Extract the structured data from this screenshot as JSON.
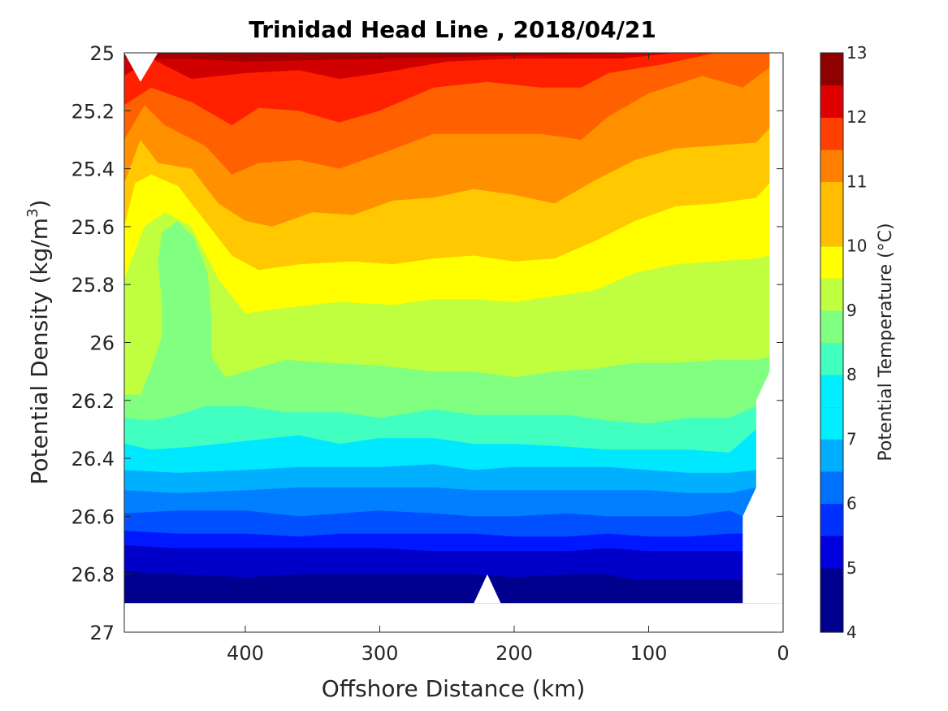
{
  "chart_data": {
    "type": "heatmap",
    "subtype": "filled-contour",
    "title": "Trinidad Head Line , 2018/04/21",
    "xlabel": "Offshore Distance (km)",
    "ylabel": "Potential Density (kg/m",
    "ylabel_superscript": "3",
    "ylabel_suffix": ")",
    "xlim": [
      490,
      0
    ],
    "x_reversed": true,
    "ylim": [
      25,
      27
    ],
    "y_reversed": true,
    "x_ticks": [
      400,
      300,
      200,
      100,
      0
    ],
    "x_tick_labels": [
      "400",
      "300",
      "200",
      "100",
      "0"
    ],
    "y_ticks": [
      25,
      25.2,
      25.4,
      25.6,
      25.8,
      26,
      26.2,
      26.4,
      26.6,
      26.8,
      27
    ],
    "y_tick_labels": [
      "25",
      "25.2",
      "25.4",
      "25.6",
      "25.8",
      "26",
      "26.2",
      "26.4",
      "26.6",
      "26.8",
      "27"
    ],
    "colorbar": {
      "label": "Potential Temperature (°C)",
      "range": [
        4,
        13
      ],
      "ticks": [
        4,
        5,
        6,
        7,
        8,
        9,
        10,
        11,
        12,
        13
      ],
      "tick_labels": [
        "4",
        "5",
        "6",
        "7",
        "8",
        "9",
        "10",
        "11",
        "12",
        "13"
      ],
      "level_step": 0.5,
      "colors": [
        "#00008f",
        "#0000df",
        "#0030ff",
        "#0070ff",
        "#00afff",
        "#00efff",
        "#40ffbf",
        "#80ff80",
        "#bfff40",
        "#ffff00",
        "#ffbf00",
        "#ff8000",
        "#ff4000",
        "#df0000",
        "#8f0000"
      ],
      "band_colors": [
        "#00008f",
        "#0000c8",
        "#0018ff",
        "#0050ff",
        "#0080ff",
        "#00b0ff",
        "#00e8ff",
        "#40ffc0",
        "#80ff80",
        "#c0ff40",
        "#ffff00",
        "#ffc800",
        "#ff9000",
        "#ff6000",
        "#ff2000",
        "#d00000",
        "#a00000"
      ]
    },
    "isotherms": [
      {
        "level": 12.5,
        "points": [
          [
            490,
            25.02
          ],
          [
            440,
            25.02
          ],
          [
            400,
            25.03
          ],
          [
            300,
            25.02
          ],
          [
            200,
            25.01
          ],
          [
            100,
            25.0
          ],
          [
            0,
            25.0
          ]
        ]
      },
      {
        "level": 12.0,
        "points": [
          [
            490,
            25.08
          ],
          [
            470,
            25.02
          ],
          [
            440,
            25.09
          ],
          [
            400,
            25.07
          ],
          [
            360,
            25.06
          ],
          [
            330,
            25.09
          ],
          [
            300,
            25.07
          ],
          [
            250,
            25.03
          ],
          [
            200,
            25.02
          ],
          [
            160,
            25.02
          ],
          [
            120,
            25.02
          ],
          [
            80,
            25.0
          ],
          [
            0,
            25.0
          ]
        ]
      },
      {
        "level": 11.5,
        "points": [
          [
            490,
            25.18
          ],
          [
            470,
            25.12
          ],
          [
            440,
            25.17
          ],
          [
            410,
            25.25
          ],
          [
            390,
            25.19
          ],
          [
            360,
            25.2
          ],
          [
            330,
            25.24
          ],
          [
            300,
            25.2
          ],
          [
            260,
            25.12
          ],
          [
            220,
            25.1
          ],
          [
            180,
            25.12
          ],
          [
            150,
            25.12
          ],
          [
            130,
            25.07
          ],
          [
            90,
            25.04
          ],
          [
            50,
            25.0
          ],
          [
            10,
            25.0
          ]
        ]
      },
      {
        "level": 11.0,
        "points": [
          [
            490,
            25.3
          ],
          [
            475,
            25.18
          ],
          [
            460,
            25.25
          ],
          [
            430,
            25.32
          ],
          [
            410,
            25.42
          ],
          [
            390,
            25.38
          ],
          [
            360,
            25.37
          ],
          [
            330,
            25.4
          ],
          [
            300,
            25.35
          ],
          [
            260,
            25.28
          ],
          [
            220,
            25.28
          ],
          [
            180,
            25.28
          ],
          [
            150,
            25.3
          ],
          [
            130,
            25.22
          ],
          [
            100,
            25.14
          ],
          [
            60,
            25.08
          ],
          [
            30,
            25.12
          ],
          [
            10,
            25.05
          ]
        ]
      },
      {
        "level": 10.5,
        "points": [
          [
            490,
            25.45
          ],
          [
            478,
            25.3
          ],
          [
            465,
            25.38
          ],
          [
            440,
            25.4
          ],
          [
            420,
            25.52
          ],
          [
            400,
            25.58
          ],
          [
            380,
            25.6
          ],
          [
            350,
            25.55
          ],
          [
            320,
            25.56
          ],
          [
            290,
            25.51
          ],
          [
            260,
            25.5
          ],
          [
            230,
            25.47
          ],
          [
            200,
            25.49
          ],
          [
            170,
            25.52
          ],
          [
            140,
            25.44
          ],
          [
            110,
            25.37
          ],
          [
            80,
            25.33
          ],
          [
            50,
            25.32
          ],
          [
            20,
            25.31
          ],
          [
            10,
            25.26
          ]
        ]
      },
      {
        "level": 10.0,
        "points": [
          [
            490,
            25.6
          ],
          [
            482,
            25.45
          ],
          [
            470,
            25.42
          ],
          [
            450,
            25.46
          ],
          [
            430,
            25.58
          ],
          [
            410,
            25.7
          ],
          [
            390,
            25.75
          ],
          [
            360,
            25.73
          ],
          [
            320,
            25.72
          ],
          [
            290,
            25.73
          ],
          [
            260,
            25.71
          ],
          [
            230,
            25.7
          ],
          [
            200,
            25.72
          ],
          [
            170,
            25.71
          ],
          [
            140,
            25.65
          ],
          [
            110,
            25.58
          ],
          [
            80,
            25.53
          ],
          [
            50,
            25.52
          ],
          [
            20,
            25.5
          ],
          [
            10,
            25.45
          ]
        ]
      },
      {
        "level": 9.5,
        "points": [
          [
            490,
            25.78
          ],
          [
            475,
            25.6
          ],
          [
            460,
            25.55
          ],
          [
            440,
            25.6
          ],
          [
            420,
            25.78
          ],
          [
            400,
            25.9
          ],
          [
            370,
            25.88
          ],
          [
            330,
            25.86
          ],
          [
            290,
            25.87
          ],
          [
            260,
            25.85
          ],
          [
            230,
            25.85
          ],
          [
            200,
            25.86
          ],
          [
            170,
            25.84
          ],
          [
            140,
            25.82
          ],
          [
            110,
            25.76
          ],
          [
            80,
            25.73
          ],
          [
            50,
            25.72
          ],
          [
            20,
            25.71
          ],
          [
            10,
            25.7
          ]
        ]
      },
      {
        "level": 9.0,
        "points": [
          [
            490,
            26.18
          ],
          [
            478,
            26.18
          ],
          [
            470,
            26.09
          ],
          [
            462,
            25.98
          ],
          [
            462,
            25.86
          ],
          [
            465,
            25.72
          ],
          [
            462,
            25.62
          ],
          [
            450,
            25.58
          ],
          [
            438,
            25.64
          ],
          [
            428,
            25.76
          ],
          [
            425,
            25.92
          ],
          [
            425,
            26.05
          ],
          [
            415,
            26.12
          ],
          [
            400,
            26.1
          ],
          [
            370,
            26.06
          ],
          [
            340,
            26.07
          ],
          [
            300,
            26.08
          ],
          [
            260,
            26.1
          ],
          [
            230,
            26.1
          ],
          [
            200,
            26.12
          ],
          [
            170,
            26.1
          ],
          [
            140,
            26.09
          ],
          [
            110,
            26.07
          ],
          [
            80,
            26.07
          ],
          [
            50,
            26.06
          ],
          [
            20,
            26.06
          ],
          [
            10,
            26.05
          ]
        ]
      },
      {
        "level": 8.5,
        "points": [
          [
            490,
            26.26
          ],
          [
            470,
            26.27
          ],
          [
            450,
            26.25
          ],
          [
            430,
            26.22
          ],
          [
            400,
            26.22
          ],
          [
            370,
            26.24
          ],
          [
            330,
            26.24
          ],
          [
            300,
            26.26
          ],
          [
            260,
            26.23
          ],
          [
            230,
            26.25
          ],
          [
            200,
            26.25
          ],
          [
            160,
            26.25
          ],
          [
            130,
            26.27
          ],
          [
            100,
            26.28
          ],
          [
            70,
            26.26
          ],
          [
            40,
            26.26
          ],
          [
            20,
            26.22
          ],
          [
            10,
            26.1
          ]
        ]
      },
      {
        "level": 8.0,
        "points": [
          [
            490,
            26.35
          ],
          [
            470,
            26.37
          ],
          [
            440,
            26.36
          ],
          [
            400,
            26.34
          ],
          [
            360,
            26.32
          ],
          [
            330,
            26.35
          ],
          [
            300,
            26.33
          ],
          [
            260,
            26.33
          ],
          [
            230,
            26.35
          ],
          [
            200,
            26.35
          ],
          [
            160,
            26.36
          ],
          [
            130,
            26.37
          ],
          [
            100,
            26.37
          ],
          [
            70,
            26.37
          ],
          [
            40,
            26.38
          ],
          [
            20,
            26.3
          ]
        ]
      },
      {
        "level": 7.5,
        "points": [
          [
            490,
            26.44
          ],
          [
            450,
            26.45
          ],
          [
            400,
            26.44
          ],
          [
            360,
            26.43
          ],
          [
            300,
            26.43
          ],
          [
            260,
            26.42
          ],
          [
            230,
            26.44
          ],
          [
            200,
            26.43
          ],
          [
            160,
            26.43
          ],
          [
            130,
            26.43
          ],
          [
            100,
            26.44
          ],
          [
            70,
            26.45
          ],
          [
            40,
            26.45
          ],
          [
            20,
            26.44
          ]
        ]
      },
      {
        "level": 7.0,
        "points": [
          [
            490,
            26.51
          ],
          [
            450,
            26.52
          ],
          [
            400,
            26.51
          ],
          [
            360,
            26.5
          ],
          [
            300,
            26.5
          ],
          [
            260,
            26.5
          ],
          [
            230,
            26.51
          ],
          [
            200,
            26.51
          ],
          [
            160,
            26.51
          ],
          [
            130,
            26.51
          ],
          [
            100,
            26.51
          ],
          [
            70,
            26.52
          ],
          [
            40,
            26.52
          ],
          [
            20,
            26.5
          ]
        ]
      },
      {
        "level": 6.5,
        "points": [
          [
            490,
            26.59
          ],
          [
            450,
            26.58
          ],
          [
            400,
            26.58
          ],
          [
            360,
            26.6
          ],
          [
            330,
            26.59
          ],
          [
            300,
            26.58
          ],
          [
            260,
            26.59
          ],
          [
            230,
            26.6
          ],
          [
            200,
            26.6
          ],
          [
            160,
            26.59
          ],
          [
            130,
            26.6
          ],
          [
            100,
            26.6
          ],
          [
            70,
            26.6
          ],
          [
            40,
            26.58
          ],
          [
            30,
            26.6
          ]
        ]
      },
      {
        "level": 6.0,
        "points": [
          [
            490,
            26.65
          ],
          [
            450,
            26.66
          ],
          [
            400,
            26.66
          ],
          [
            360,
            26.67
          ],
          [
            330,
            26.66
          ],
          [
            300,
            26.66
          ],
          [
            260,
            26.66
          ],
          [
            230,
            26.66
          ],
          [
            200,
            26.67
          ],
          [
            160,
            26.67
          ],
          [
            130,
            26.66
          ],
          [
            100,
            26.67
          ],
          [
            70,
            26.67
          ],
          [
            40,
            26.66
          ],
          [
            30,
            26.66
          ]
        ]
      },
      {
        "level": 5.5,
        "points": [
          [
            490,
            26.7
          ],
          [
            450,
            26.71
          ],
          [
            400,
            26.71
          ],
          [
            360,
            26.71
          ],
          [
            330,
            26.71
          ],
          [
            300,
            26.71
          ],
          [
            260,
            26.72
          ],
          [
            230,
            26.72
          ],
          [
            200,
            26.72
          ],
          [
            160,
            26.72
          ],
          [
            130,
            26.71
          ],
          [
            100,
            26.72
          ],
          [
            70,
            26.72
          ],
          [
            40,
            26.72
          ],
          [
            30,
            26.72
          ]
        ]
      },
      {
        "level": 5.0,
        "points": [
          [
            490,
            26.79
          ],
          [
            450,
            26.8
          ],
          [
            400,
            26.81
          ],
          [
            360,
            26.8
          ],
          [
            330,
            26.8
          ],
          [
            300,
            26.8
          ],
          [
            260,
            26.8
          ],
          [
            230,
            26.8
          ],
          [
            200,
            26.81
          ],
          [
            160,
            26.8
          ],
          [
            130,
            26.8
          ],
          [
            110,
            26.82
          ],
          [
            80,
            26.82
          ],
          [
            50,
            26.82
          ],
          [
            30,
            26.82
          ]
        ]
      },
      {
        "level": 4.5,
        "points": [
          [
            490,
            26.88
          ],
          [
            460,
            26.88
          ],
          [
            420,
            26.87
          ],
          [
            400,
            26.88
          ],
          [
            360,
            26.88
          ],
          [
            330,
            26.87
          ],
          [
            300,
            26.87
          ],
          [
            260,
            26.88
          ],
          [
            230,
            26.88
          ],
          [
            200,
            26.88
          ],
          [
            160,
            26.88
          ],
          [
            130,
            26.89
          ],
          [
            110,
            26.9
          ],
          [
            30,
            26.9
          ]
        ]
      }
    ]
  }
}
